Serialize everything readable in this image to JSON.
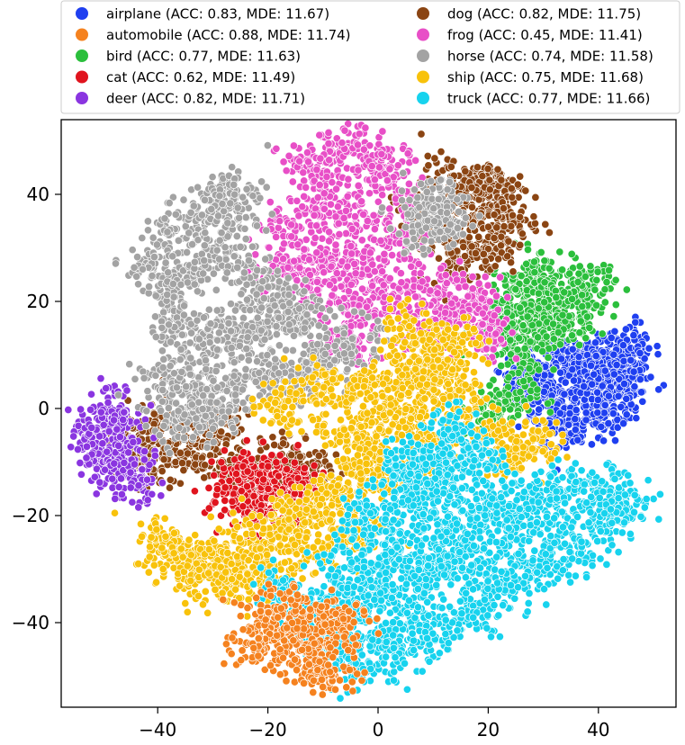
{
  "chart_data": {
    "type": "scatter",
    "title": "",
    "xlabel": "",
    "ylabel": "",
    "xlim": [
      -56,
      53
    ],
    "ylim": [
      -56,
      55
    ],
    "xticks": [
      -40,
      -20,
      0,
      20,
      40
    ],
    "yticks": [
      40,
      20,
      0,
      -20,
      -40
    ],
    "xtick_labels": [
      "−40",
      "−20",
      "0",
      "20",
      "40"
    ],
    "ytick_labels": [
      "40",
      "20",
      "0",
      "−20",
      "−40"
    ],
    "legend_position": "top",
    "series": [
      {
        "name": "airplane",
        "label": "airplane (ACC: 0.83, MDE: 11.67)",
        "color": "#1f3ff0",
        "acc": 0.83,
        "mde": 11.67
      },
      {
        "name": "automobile",
        "label": "automobile (ACC: 0.88, MDE: 11.74)",
        "color": "#f5821f",
        "acc": 0.88,
        "mde": 11.74
      },
      {
        "name": "bird",
        "label": "bird (ACC: 0.77, MDE: 11.63)",
        "color": "#2bbf3c",
        "acc": 0.77,
        "mde": 11.63
      },
      {
        "name": "cat",
        "label": "cat (ACC: 0.62, MDE: 11.49)",
        "color": "#e0141e",
        "acc": 0.62,
        "mde": 11.49
      },
      {
        "name": "deer",
        "label": "deer (ACC: 0.82, MDE: 11.71)",
        "color": "#8a35e0",
        "acc": 0.82,
        "mde": 11.71
      },
      {
        "name": "dog",
        "label": "dog (ACC: 0.82, MDE: 11.75)",
        "color": "#8b4513",
        "acc": 0.82,
        "mde": 11.75
      },
      {
        "name": "frog",
        "label": "frog (ACC: 0.45, MDE: 11.41)",
        "color": "#e84fc7",
        "acc": 0.45,
        "mde": 11.41
      },
      {
        "name": "horse",
        "label": "horse (ACC: 0.74, MDE: 11.58)",
        "color": "#a3a3a3",
        "acc": 0.74,
        "mde": 11.58
      },
      {
        "name": "ship",
        "label": "ship (ACC: 0.75, MDE: 11.68)",
        "color": "#f8c20b",
        "acc": 0.75,
        "mde": 11.68
      },
      {
        "name": "truck",
        "label": "truck (ACC: 0.77, MDE: 11.66)",
        "color": "#17d3ee",
        "acc": 0.77,
        "mde": 11.66
      }
    ],
    "clusters": [
      {
        "series": "airplane",
        "points": [
          [
            29,
            6
          ],
          [
            32,
            9
          ],
          [
            36,
            10
          ],
          [
            40,
            8
          ],
          [
            44,
            9
          ],
          [
            46,
            11
          ],
          [
            42,
            5
          ],
          [
            38,
            2
          ],
          [
            34,
            -1
          ],
          [
            30,
            2
          ],
          [
            26,
            4
          ],
          [
            36,
            -3
          ],
          [
            40,
            -1
          ],
          [
            43,
            3
          ],
          [
            45,
            6
          ]
        ]
      },
      {
        "series": "bird",
        "points": [
          [
            26,
            22
          ],
          [
            29,
            25
          ],
          [
            32,
            20
          ],
          [
            36,
            20
          ],
          [
            38,
            23
          ],
          [
            24,
            17
          ],
          [
            28,
            16
          ],
          [
            33,
            15
          ],
          [
            27,
            12
          ],
          [
            22,
            14
          ],
          [
            24,
            2
          ],
          [
            20,
            -1
          ]
        ]
      },
      {
        "series": "dog",
        "points": [
          [
            17,
            38
          ],
          [
            20,
            42
          ],
          [
            23,
            40
          ],
          [
            24,
            35
          ],
          [
            20,
            30
          ],
          [
            15,
            28
          ],
          [
            10,
            33
          ],
          [
            7,
            36
          ],
          [
            13,
            42
          ],
          [
            -30,
            -3
          ],
          [
            -35,
            -8
          ],
          [
            -40,
            -4
          ],
          [
            -28,
            -10
          ],
          [
            -22,
            -13
          ],
          [
            -16,
            -10
          ],
          [
            -12,
            -12
          ],
          [
            -42,
            -10
          ],
          [
            -45,
            -7
          ]
        ]
      },
      {
        "series": "deer",
        "points": [
          [
            -51,
            -6
          ],
          [
            -48,
            -3
          ],
          [
            -46,
            -10
          ],
          [
            -50,
            -11
          ],
          [
            -44,
            -13
          ],
          [
            -49,
            -1
          ]
        ]
      },
      {
        "series": "cat",
        "points": [
          [
            -26,
            -15
          ],
          [
            -23,
            -18
          ],
          [
            -19,
            -15
          ],
          [
            -17,
            -19
          ],
          [
            -22,
            -12
          ],
          [
            -15,
            -14
          ]
        ]
      },
      {
        "series": "frog",
        "points": [
          [
            -13,
            45
          ],
          [
            -7,
            48
          ],
          [
            -1,
            46
          ],
          [
            3,
            43
          ],
          [
            -4,
            35
          ],
          [
            -10,
            38
          ],
          [
            -16,
            34
          ],
          [
            -9,
            28
          ],
          [
            -2,
            26
          ],
          [
            4,
            32
          ],
          [
            1,
            20
          ],
          [
            -6,
            18
          ],
          [
            8,
            14
          ],
          [
            14,
            18
          ],
          [
            18,
            20
          ],
          [
            20,
            14
          ],
          [
            -18,
            26
          ],
          [
            -12,
            22
          ],
          [
            -5,
            12
          ],
          [
            10,
            22
          ]
        ]
      },
      {
        "series": "horse",
        "points": [
          [
            -31,
            36
          ],
          [
            -37,
            33
          ],
          [
            -41,
            26
          ],
          [
            -35,
            24
          ],
          [
            -29,
            28
          ],
          [
            -23,
            24
          ],
          [
            -17,
            20
          ],
          [
            -21,
            16
          ],
          [
            -27,
            14
          ],
          [
            -33,
            12
          ],
          [
            -37,
            17
          ],
          [
            -39,
            5
          ],
          [
            -33,
            3
          ],
          [
            -27,
            5
          ],
          [
            -21,
            7
          ],
          [
            -15,
            5
          ],
          [
            -9,
            8
          ],
          [
            -5,
            12
          ],
          [
            -36,
            -2
          ],
          [
            -30,
            -1
          ],
          [
            -14,
            16
          ],
          [
            -25,
            38
          ],
          [
            -28,
            40
          ],
          [
            7,
            34
          ],
          [
            10,
            38
          ],
          [
            12,
            36
          ]
        ]
      },
      {
        "series": "ship",
        "points": [
          [
            5,
            8
          ],
          [
            10,
            6
          ],
          [
            14,
            3
          ],
          [
            2,
            0
          ],
          [
            8,
            -2
          ],
          [
            0,
            -7
          ],
          [
            4,
            -12
          ],
          [
            10,
            -10
          ],
          [
            -6,
            -16
          ],
          [
            -12,
            -18
          ],
          [
            -18,
            -21
          ],
          [
            -24,
            -25
          ],
          [
            -30,
            -28
          ],
          [
            -36,
            -27
          ],
          [
            -39,
            -25
          ],
          [
            -33,
            -31
          ],
          [
            -27,
            -32
          ],
          [
            -21,
            -31
          ],
          [
            -15,
            -27
          ],
          [
            -9,
            -24
          ],
          [
            -3,
            -23
          ],
          [
            -10,
            4
          ],
          [
            -18,
            0
          ],
          [
            -6,
            -4
          ],
          [
            18,
            -4
          ],
          [
            24,
            -8
          ],
          [
            28,
            -6
          ],
          [
            -2,
            4
          ],
          [
            6,
            15
          ],
          [
            14,
            12
          ],
          [
            12,
            8
          ],
          [
            -2,
            -12
          ]
        ]
      },
      {
        "series": "truck",
        "points": [
          [
            -18,
            -35
          ],
          [
            -12,
            -39
          ],
          [
            -6,
            -43
          ],
          [
            -3,
            -48
          ],
          [
            2,
            -45
          ],
          [
            6,
            -37
          ],
          [
            10,
            -29
          ],
          [
            14,
            -25
          ],
          [
            18,
            -20
          ],
          [
            22,
            -18
          ],
          [
            28,
            -17
          ],
          [
            34,
            -16
          ],
          [
            40,
            -16
          ],
          [
            45,
            -17
          ],
          [
            42,
            -21
          ],
          [
            36,
            -25
          ],
          [
            30,
            -29
          ],
          [
            24,
            -33
          ],
          [
            18,
            -37
          ],
          [
            12,
            -41
          ],
          [
            6,
            -43
          ],
          [
            4,
            -13
          ],
          [
            8,
            -9
          ],
          [
            12,
            -13
          ],
          [
            0,
            -32
          ],
          [
            -8,
            -35
          ],
          [
            3,
            -25
          ],
          [
            16,
            -30
          ],
          [
            22,
            -25
          ],
          [
            28,
            -22
          ],
          [
            10,
            -20
          ],
          [
            -2,
            -38
          ],
          [
            -10,
            -42
          ],
          [
            6,
            -30
          ],
          [
            18,
            -10
          ],
          [
            14,
            -5
          ],
          [
            6,
            -15
          ],
          [
            -2,
            -20
          ],
          [
            -5,
            -30
          ]
        ]
      },
      {
        "series": "automobile",
        "points": [
          [
            -20,
            -41
          ],
          [
            -16,
            -44
          ],
          [
            -11,
            -42
          ],
          [
            -7,
            -39
          ],
          [
            -17,
            -37
          ],
          [
            -13,
            -47
          ],
          [
            -8,
            -50
          ],
          [
            -22,
            -44
          ]
        ]
      }
    ]
  }
}
